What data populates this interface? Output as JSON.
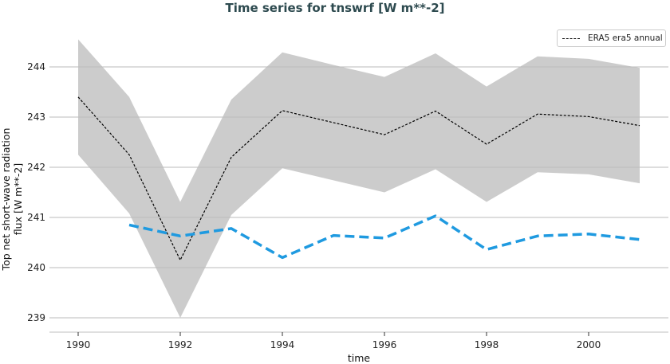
{
  "chart_data": {
    "type": "line",
    "title": "Time series for tnswrf [W m**-2]",
    "xlabel": "time",
    "ylabel": "Top net short-wave radiation flux [W m**-2]",
    "xlim": [
      1989.4,
      2002.0
    ],
    "ylim": [
      238.7,
      244.6
    ],
    "xticks": [
      1990,
      1992,
      1994,
      1996,
      1998,
      2000
    ],
    "yticks": [
      239,
      240,
      241,
      242,
      243,
      244
    ],
    "grid": "horizontal",
    "legend_position": "top-right",
    "series": [
      {
        "name": "ERA5 era5 annual",
        "style": "dashed",
        "color": "#000000",
        "x": [
          1990,
          1991,
          1992,
          1993,
          1994,
          1995,
          1996,
          1997,
          1998,
          1999,
          2000,
          2001
        ],
        "values": [
          243.4,
          242.25,
          240.15,
          242.2,
          243.13,
          242.89,
          242.65,
          243.12,
          242.46,
          243.06,
          243.01,
          242.83
        ]
      },
      {
        "style": "dashed",
        "color": "#1f9ae0",
        "x": [
          1991,
          1992,
          1993,
          1994,
          1995,
          1996,
          1997,
          1998,
          1999,
          2000,
          2001
        ],
        "values": [
          240.85,
          240.63,
          240.78,
          240.2,
          240.64,
          240.59,
          241.03,
          240.36,
          240.63,
          240.67,
          240.56
        ]
      }
    ],
    "band": {
      "color": "#cccccc",
      "x": [
        1990,
        1991,
        1992,
        1993,
        1994,
        1995,
        1996,
        1997,
        1998,
        1999,
        2000,
        2001
      ],
      "upper": [
        244.55,
        243.4,
        241.31,
        243.35,
        244.29,
        244.04,
        243.8,
        244.27,
        243.61,
        244.21,
        244.16,
        243.98
      ],
      "lower": [
        242.25,
        241.08,
        239.0,
        241.05,
        241.98,
        241.74,
        241.5,
        241.96,
        241.31,
        241.9,
        241.86,
        241.68
      ]
    }
  }
}
